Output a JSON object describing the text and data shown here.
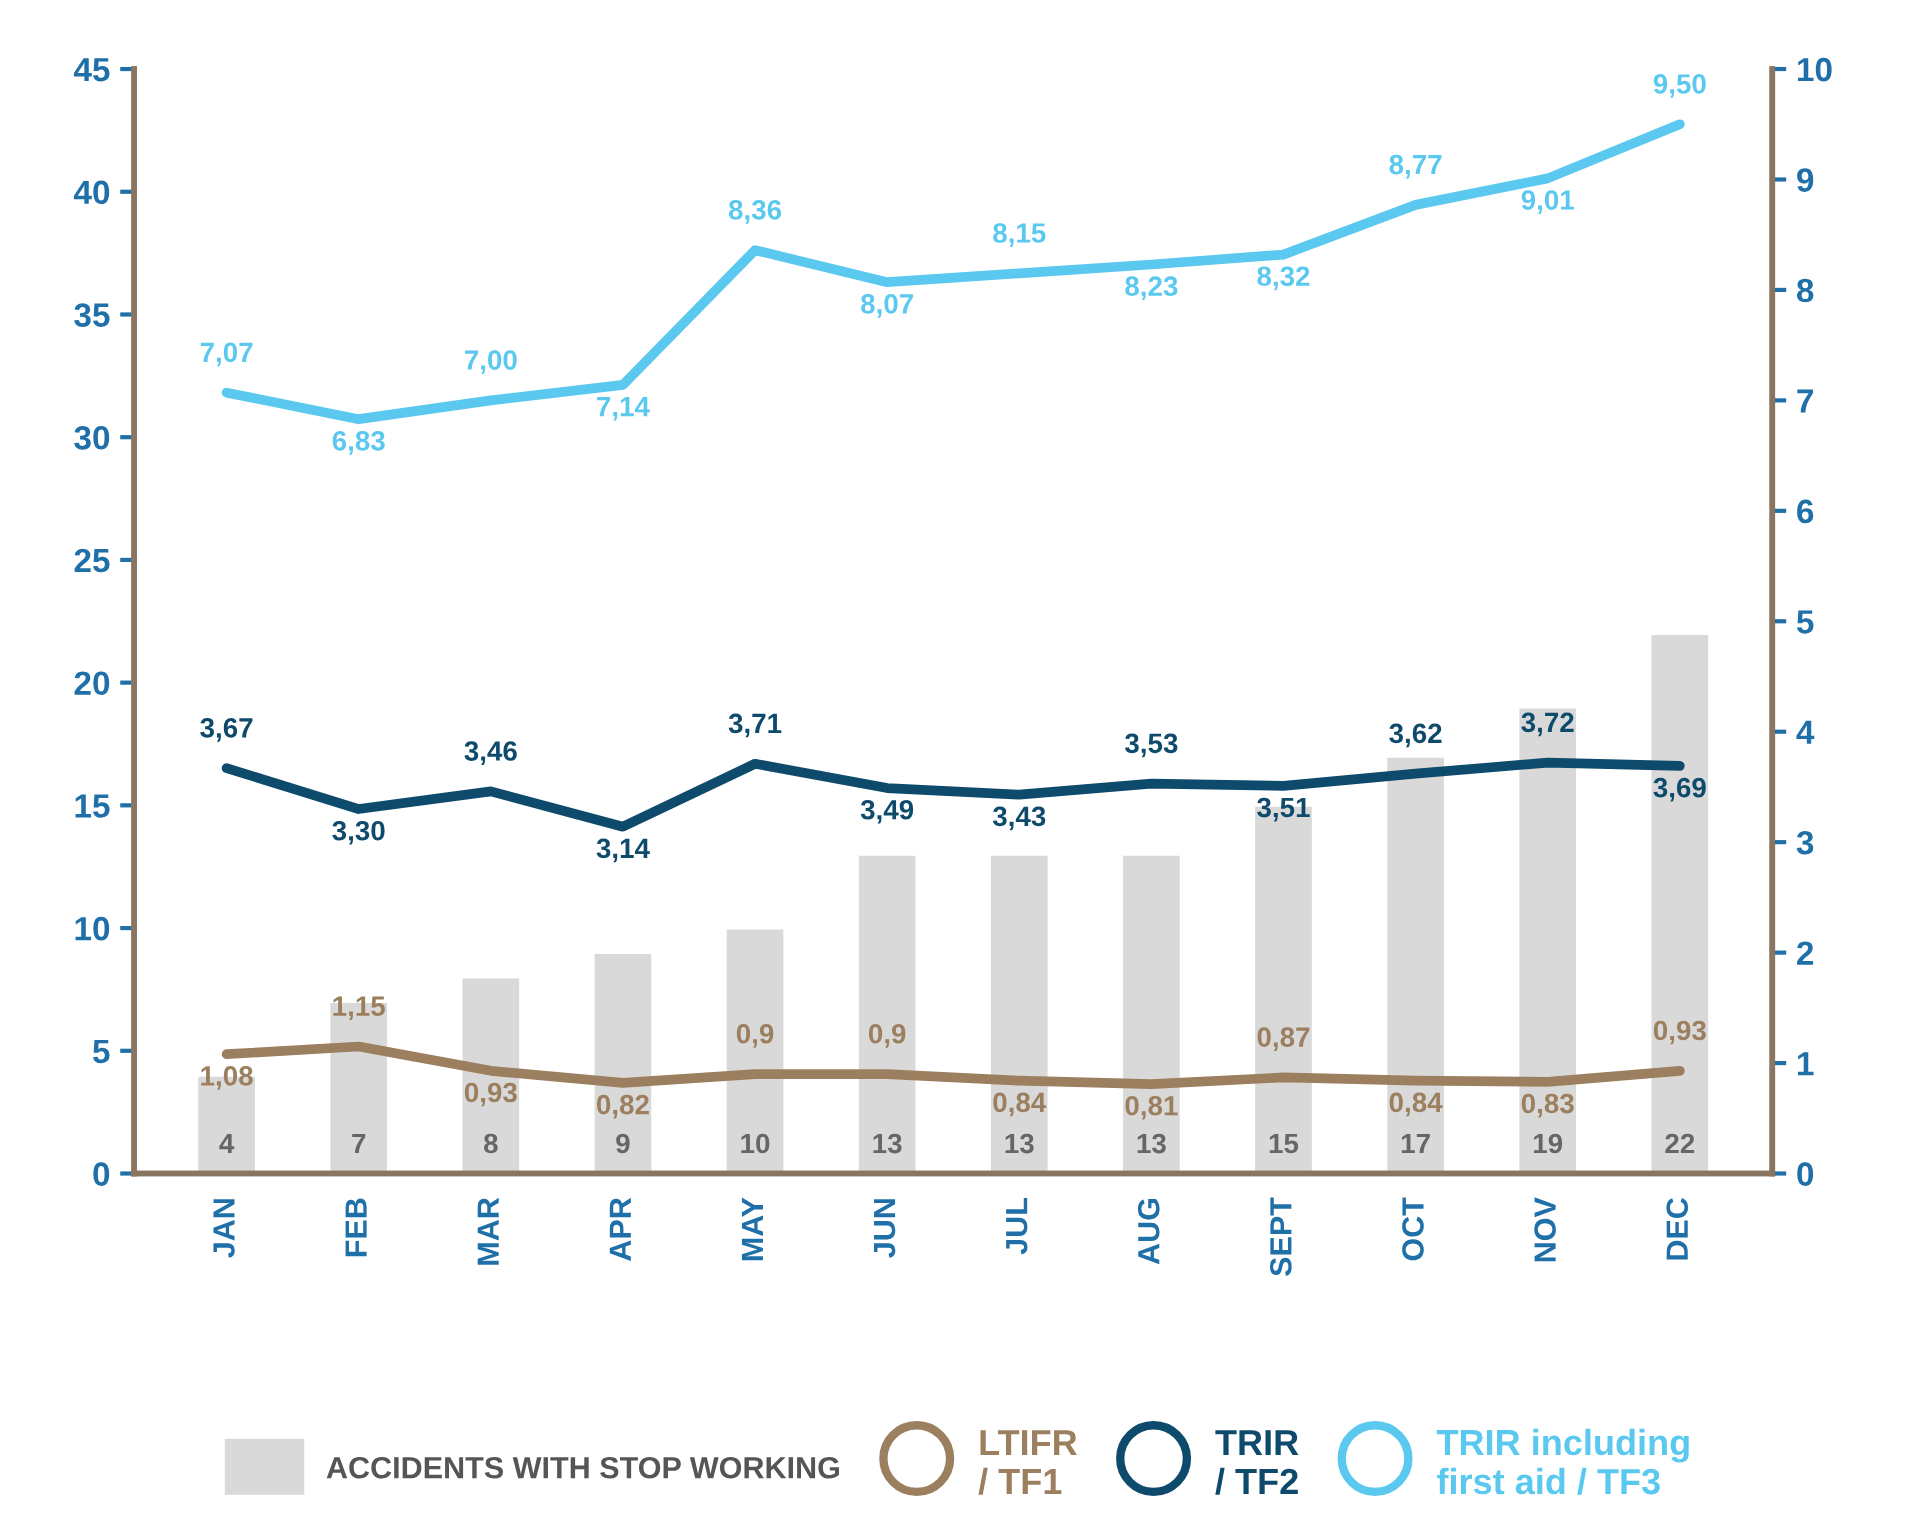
{
  "chart_data": {
    "type": "bar",
    "categories": [
      "JAN",
      "FEB",
      "MAR",
      "APR",
      "MAY",
      "JUN",
      "JUL",
      "AUG",
      "SEPT",
      "OCT",
      "NOV",
      "DEC"
    ],
    "series": [
      {
        "name": "ACCIDENTS WITH STOP WORKING",
        "color": "#d9d9d9",
        "values": [
          4,
          7,
          8,
          9,
          10,
          13,
          13,
          13,
          15,
          17,
          19,
          22
        ],
        "value_labels": [
          "4",
          "7",
          "8",
          "9",
          "10",
          "13",
          "13",
          "13",
          "15",
          "17",
          "19",
          "22"
        ]
      },
      {
        "name": "LTIFR / TF1",
        "type": "line",
        "axis": "y2",
        "color": "#9b7f5f",
        "values": [
          1.08,
          1.15,
          0.93,
          0.82,
          0.9,
          0.9,
          0.84,
          0.81,
          0.87,
          0.84,
          0.83,
          0.93
        ],
        "value_labels": [
          "1,08",
          "1,15",
          "0,93",
          "0,82",
          "0,9",
          "0,9",
          "0,84",
          "0,81",
          "0,87",
          "0,84",
          "0,83",
          "0,93"
        ]
      },
      {
        "name": "TRIR / TF2",
        "type": "line",
        "axis": "y2",
        "color": "#0e4a6b",
        "values": [
          3.67,
          3.3,
          3.46,
          3.14,
          3.71,
          3.49,
          3.43,
          3.53,
          3.51,
          3.62,
          3.72,
          3.69
        ],
        "value_labels": [
          "3,67",
          "3,30",
          "3,46",
          "3,14",
          "3,71",
          "3,49",
          "3,43",
          "3,53",
          "3,51",
          "3,62",
          "3,72",
          "3,69"
        ]
      },
      {
        "name": "TRIR including first aid / TF3",
        "type": "line",
        "axis": "y2",
        "color": "#5bc8f0",
        "values": [
          7.07,
          6.83,
          7.0,
          7.14,
          8.36,
          8.07,
          8.15,
          8.23,
          8.32,
          8.77,
          9.01,
          9.5
        ],
        "value_labels": [
          "7,07",
          "6,83",
          "7,00",
          "7,14",
          "8,36",
          "8,07",
          "8,15",
          "8,23",
          "8,32",
          "8,77",
          "9,01",
          "9,50"
        ]
      }
    ],
    "ylim": [
      0,
      45
    ],
    "yticks": [
      0,
      5,
      10,
      15,
      20,
      25,
      30,
      35,
      40,
      45
    ],
    "y2lim": [
      0,
      10
    ],
    "y2ticks": [
      0,
      1,
      2,
      3,
      4,
      5,
      6,
      7,
      8,
      9,
      10
    ],
    "grid": false,
    "legend": "bottom"
  }
}
